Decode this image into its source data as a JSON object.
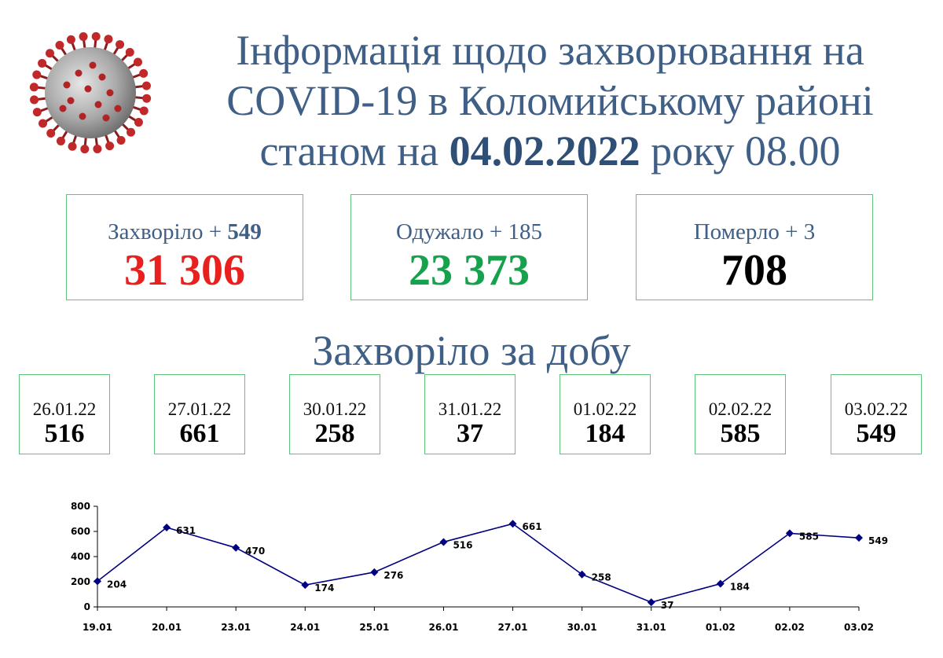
{
  "header": {
    "title_line1": "Інформація щодо захворювання на",
    "title_line2": "COVID-19 в Коломийському районі",
    "title_line3_prefix": "станом на",
    "title_date": "04.02.2022",
    "title_line3_suffix": "року 08.00"
  },
  "virus_icon": "coronavirus-icon",
  "stats": {
    "infected": {
      "label": "Захворіло +",
      "delta": "549",
      "value": "31 306",
      "color": "#e8201e"
    },
    "recovered": {
      "label": "Одужало + 185",
      "value": "23 373",
      "color": "#16a24c"
    },
    "deaths": {
      "label": "Померло + 3",
      "value": "708",
      "color": "#000000"
    }
  },
  "daily": {
    "title": "Захворіло за добу",
    "items": [
      {
        "date": "26.01.22",
        "value": "516"
      },
      {
        "date": "27.01.22",
        "value": "661"
      },
      {
        "date": "30.01.22",
        "value": "258"
      },
      {
        "date": "31.01.22",
        "value": "37"
      },
      {
        "date": "01.02.22",
        "value": "184"
      },
      {
        "date": "02.02.22",
        "value": "585"
      },
      {
        "date": "03.02.22",
        "value": "549"
      }
    ]
  },
  "chart_data": {
    "type": "line",
    "categories": [
      "19.01",
      "20.01",
      "23.01",
      "24.01",
      "25.01",
      "26.01",
      "27.01",
      "30.01",
      "31.01",
      "01.02",
      "02.02",
      "03.02"
    ],
    "series": [
      {
        "values": [
          204,
          631,
          470,
          174,
          276,
          516,
          661,
          258,
          37,
          184,
          585,
          549
        ],
        "color": "#000080"
      }
    ],
    "yticks": [
      0,
      200,
      400,
      600,
      800
    ],
    "ylim": [
      0,
      800
    ],
    "grid": false,
    "legend": "none",
    "data_labels": true
  }
}
